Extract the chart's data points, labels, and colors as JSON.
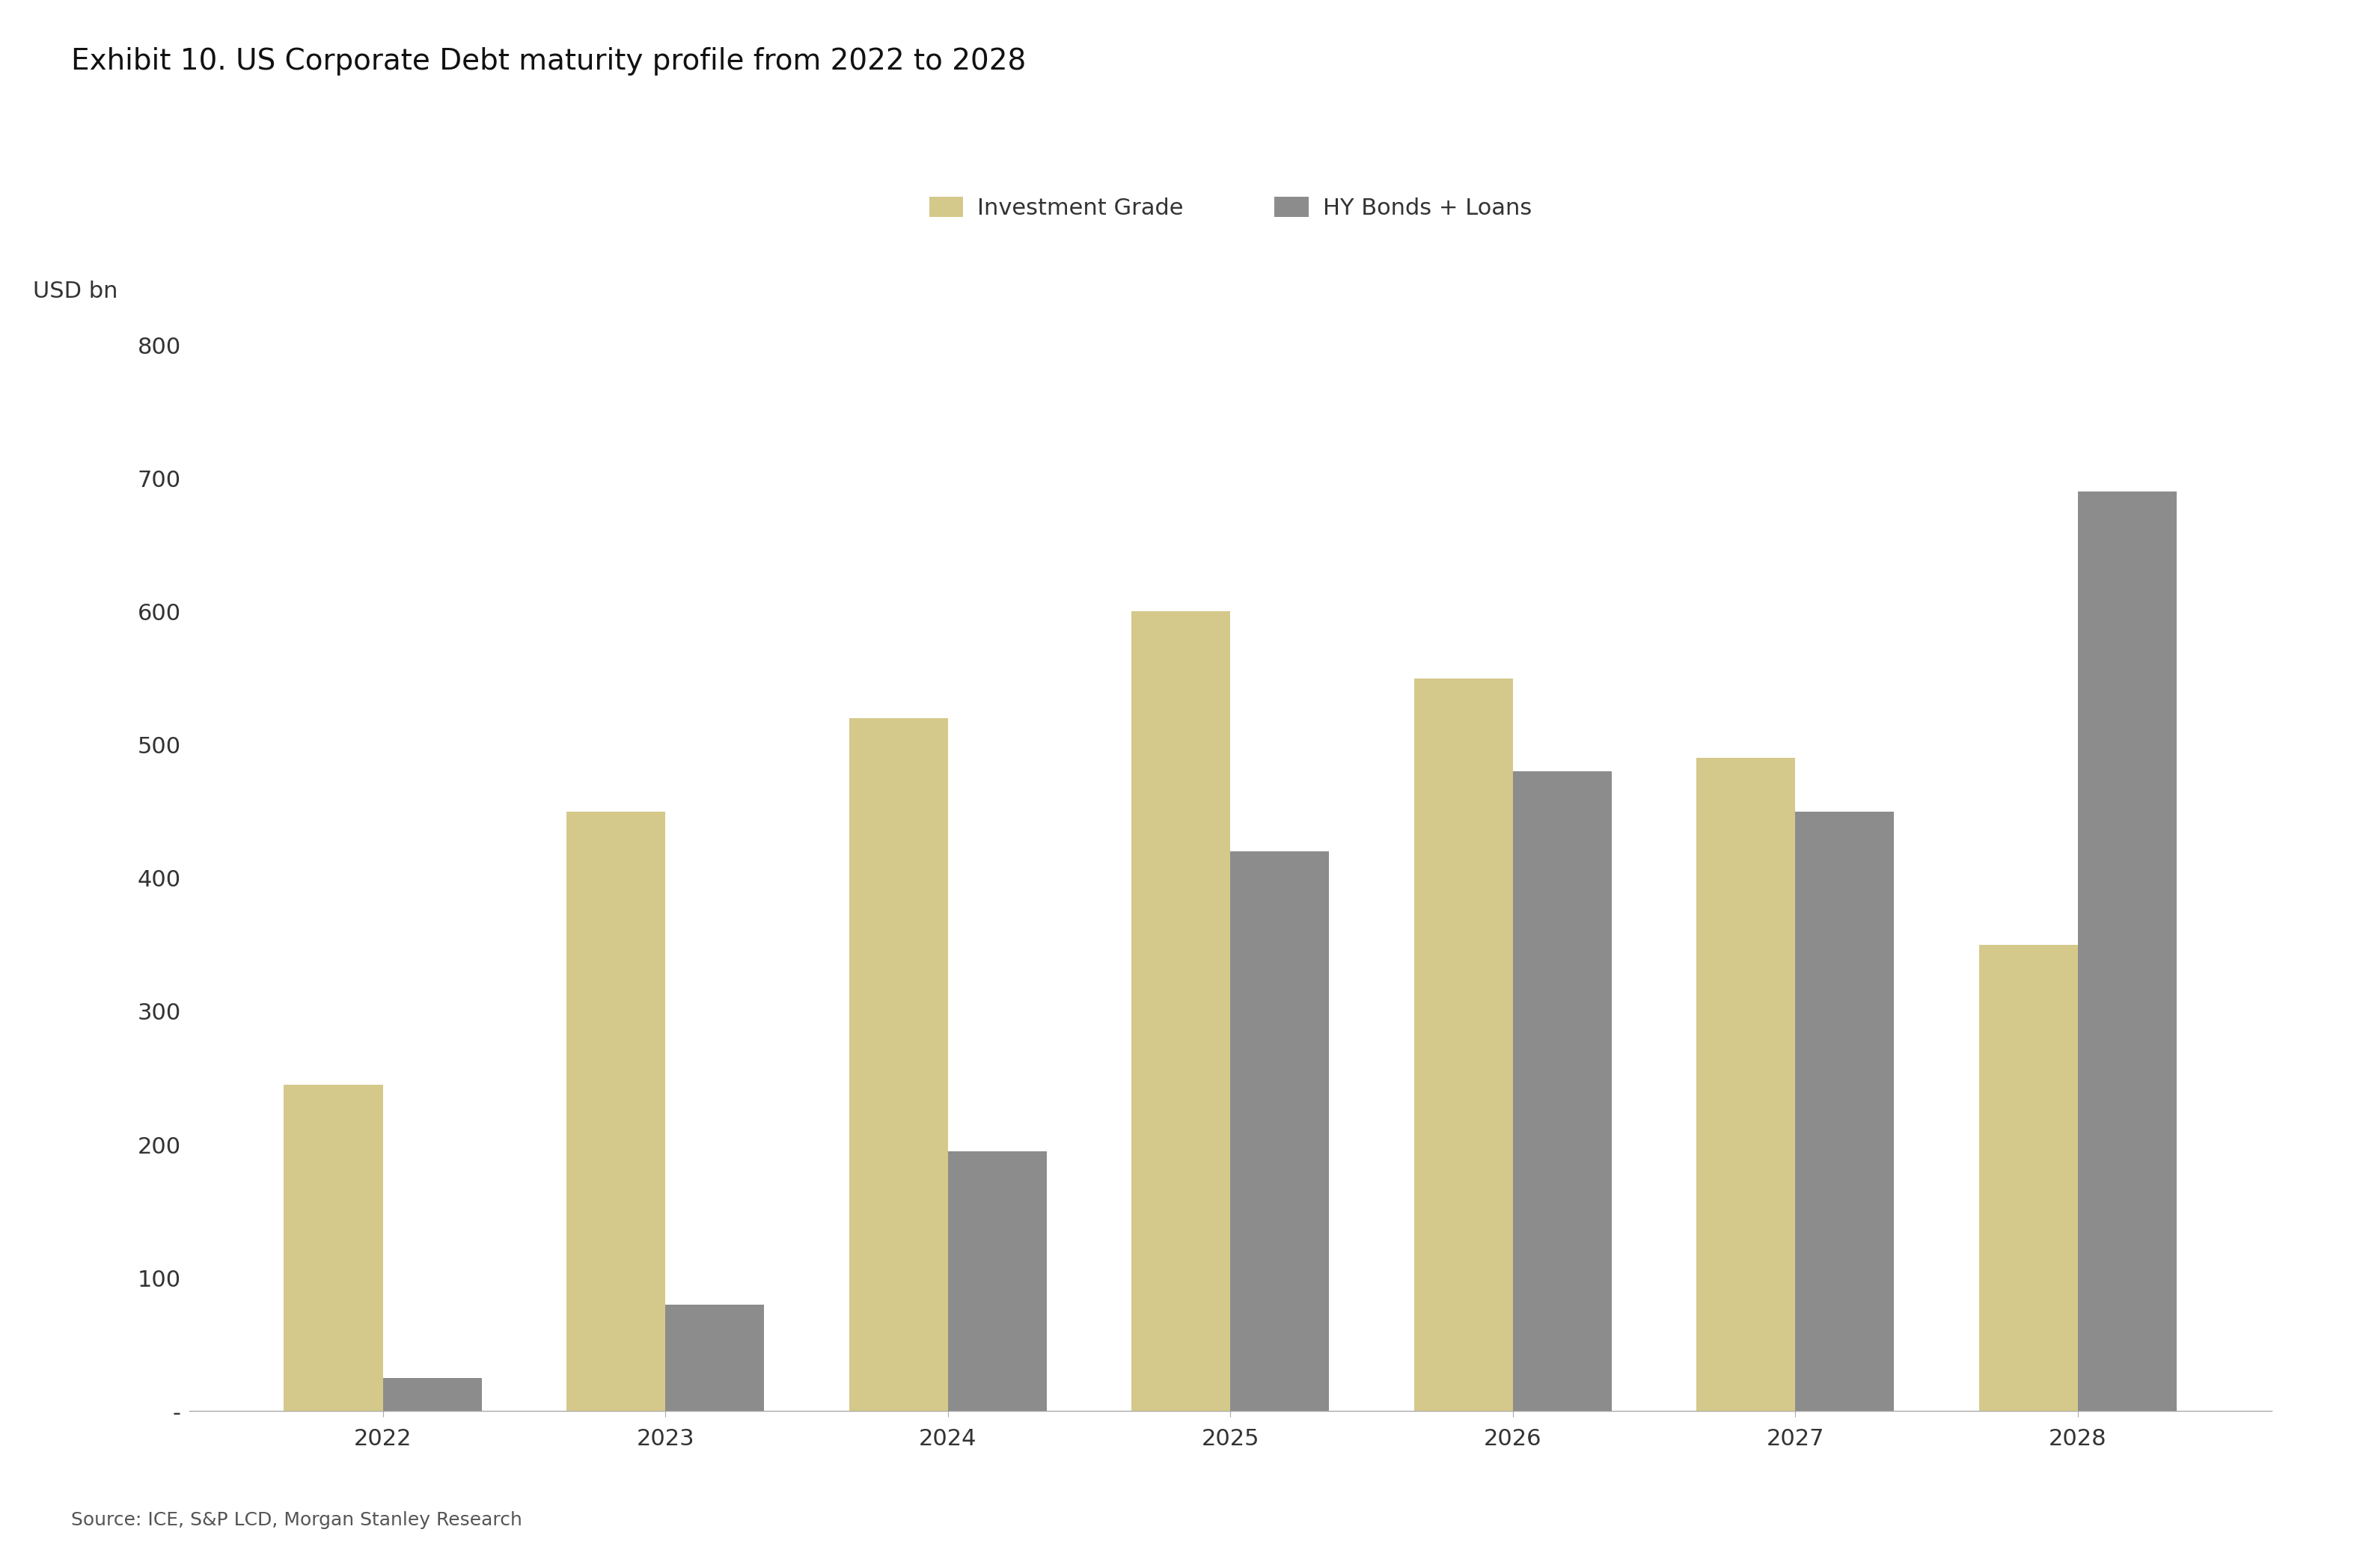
{
  "title": "Exhibit 10. US Corporate Debt maturity profile from 2022 to 2028",
  "ylabel": "USD bn",
  "source": "Source: ICE, S&P LCD, Morgan Stanley Research",
  "years": [
    2022,
    2023,
    2024,
    2025,
    2026,
    2027,
    2028
  ],
  "investment_grade": [
    245,
    450,
    520,
    600,
    550,
    490,
    350
  ],
  "hy_bonds_loans": [
    25,
    80,
    195,
    420,
    480,
    450,
    690
  ],
  "ig_color": "#d4c98a",
  "hy_color": "#8c8c8c",
  "ig_label": "Investment Grade",
  "hy_label": "HY Bonds + Loans",
  "ylim": [
    0,
    800
  ],
  "yticks": [
    0,
    100,
    200,
    300,
    400,
    500,
    600,
    700,
    800
  ],
  "background_color": "#ffffff",
  "title_fontsize": 28,
  "label_fontsize": 22,
  "tick_fontsize": 22,
  "legend_fontsize": 22,
  "source_fontsize": 18,
  "bar_width": 0.35
}
